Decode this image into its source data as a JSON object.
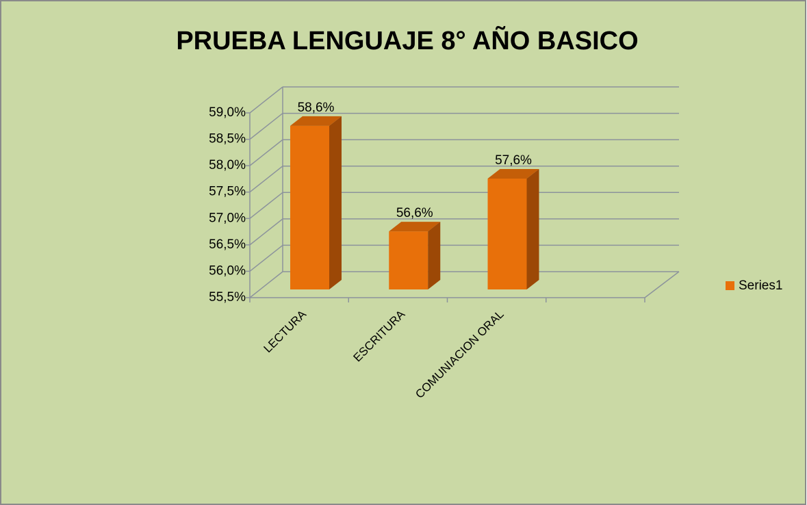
{
  "chart_data": {
    "type": "bar3d",
    "title": "PRUEBA LENGUAJE 8° AÑO BASICO",
    "categories": [
      "LECTURA",
      "ESCRITURA",
      "COMUNIACION ORAL",
      null
    ],
    "series": [
      {
        "name": "Series1",
        "color": "#e8700a",
        "values": [
          58.6,
          56.6,
          57.6,
          null
        ],
        "value_labels": [
          "58,6%",
          "56,6%",
          "57,6%",
          null
        ]
      }
    ],
    "ylim": [
      55.5,
      59.0
    ],
    "yticks": [
      {
        "value": 55.5,
        "label": "55,5%"
      },
      {
        "value": 56.0,
        "label": "56,0%"
      },
      {
        "value": 56.5,
        "label": "56,5%"
      },
      {
        "value": 57.0,
        "label": "57,0%"
      },
      {
        "value": 57.5,
        "label": "57,5%"
      },
      {
        "value": 58.0,
        "label": "58,0%"
      },
      {
        "value": 58.5,
        "label": "58,5%"
      },
      {
        "value": 59.0,
        "label": "59,0%"
      }
    ],
    "grid": true,
    "legend": "right"
  }
}
